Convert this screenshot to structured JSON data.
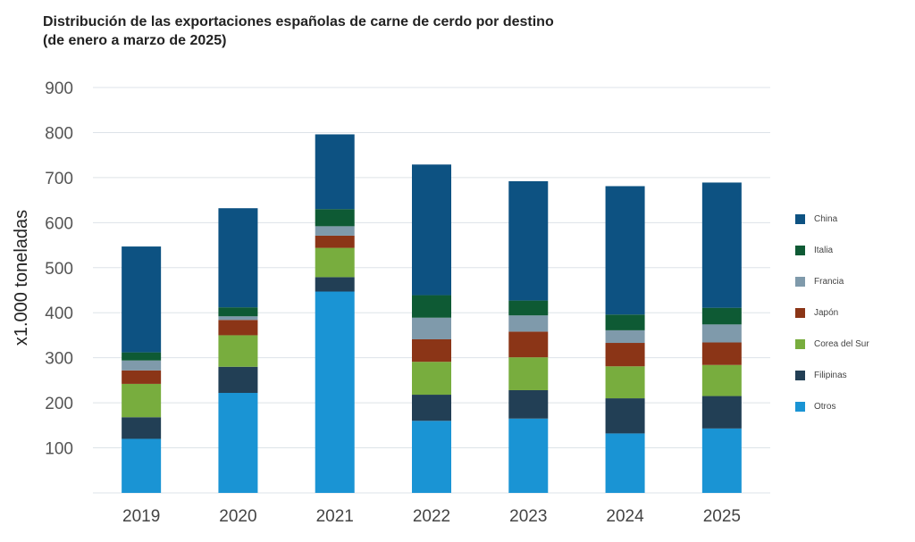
{
  "chart_data": {
    "type": "bar",
    "stacked": true,
    "title": "Distribución de las exportaciones españolas de carne de cerdo por destino",
    "subtitle": "(de enero a marzo de 2025)",
    "ylabel": "x1.000 toneladas",
    "xlabel": "",
    "ylim": [
      0,
      900
    ],
    "yticks": [
      "",
      "100",
      "200",
      "300",
      "400",
      "500",
      "600",
      "700",
      "800",
      "900"
    ],
    "ytick_values": [
      0,
      100,
      200,
      300,
      400,
      500,
      600,
      700,
      800,
      900
    ],
    "grid": true,
    "legend_position": "right",
    "categories": [
      "2019",
      "2020",
      "2021",
      "2022",
      "2023",
      "2024",
      "2025"
    ],
    "series": [
      {
        "name": "Otros",
        "color": "#1a94d4",
        "values": [
          120,
          222,
          447,
          160,
          165,
          132,
          143
        ]
      },
      {
        "name": "Filipinas",
        "color": "#223f55",
        "values": [
          48,
          58,
          32,
          58,
          63,
          78,
          72
        ]
      },
      {
        "name": "Corea del Sur",
        "color": "#78ad3e",
        "values": [
          74,
          70,
          65,
          73,
          73,
          71,
          69
        ]
      },
      {
        "name": "Japón",
        "color": "#8b3517",
        "values": [
          30,
          34,
          27,
          50,
          57,
          52,
          50
        ]
      },
      {
        "name": "Francia",
        "color": "#7f9aab",
        "values": [
          22,
          8,
          21,
          48,
          36,
          28,
          40
        ]
      },
      {
        "name": "Italia",
        "color": "#0e5a34",
        "values": [
          18,
          20,
          38,
          50,
          33,
          35,
          37
        ]
      },
      {
        "name": "China",
        "color": "#0d5282",
        "values": [
          235,
          220,
          166,
          290,
          265,
          285,
          278
        ]
      }
    ]
  }
}
